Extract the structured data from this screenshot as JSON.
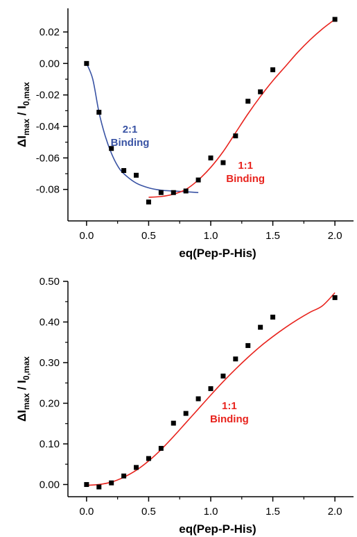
{
  "chart_data": [
    {
      "type": "scatter",
      "xlabel": "eq(Pep-P-His)",
      "ylabel": "ΔImax / I0,max",
      "ylabel_parts": {
        "main": "ΔI",
        "sub1": "max",
        "sep": " / I",
        "sub2": "0,max"
      },
      "xlim": [
        -0.15,
        2.15
      ],
      "ylim": [
        -0.1,
        0.035
      ],
      "xticks": [
        0.0,
        0.5,
        1.0,
        1.5,
        2.0
      ],
      "xtick_labels": [
        "0.0",
        "0.5",
        "1.0",
        "1.5",
        "2.0"
      ],
      "yticks": [
        -0.08,
        -0.06,
        -0.04,
        -0.02,
        0.0,
        0.02
      ],
      "ytick_labels": [
        "-0.08",
        "-0.06",
        "-0.04",
        "-0.02",
        "0.00",
        "0.02"
      ],
      "grid": false,
      "marker_color": "#000000",
      "series": [
        {
          "x": [
            0.0,
            0.1,
            0.2,
            0.3,
            0.4,
            0.5,
            0.6,
            0.7,
            0.8,
            0.9,
            1.0,
            1.1,
            1.2,
            1.3,
            1.4,
            1.5,
            2.0
          ],
          "y": [
            0.0,
            -0.031,
            -0.054,
            -0.068,
            -0.071,
            -0.088,
            -0.082,
            -0.082,
            -0.081,
            -0.074,
            -0.06,
            -0.063,
            -0.046,
            -0.024,
            -0.018,
            -0.004,
            0.028
          ]
        }
      ],
      "fits": [
        {
          "color": "#3953a4",
          "x": [
            0.0,
            0.05,
            0.1,
            0.15,
            0.2,
            0.25,
            0.3,
            0.4,
            0.5,
            0.6,
            0.7,
            0.8,
            0.9
          ],
          "y": [
            0.0,
            -0.01,
            -0.031,
            -0.046,
            -0.057,
            -0.065,
            -0.07,
            -0.076,
            -0.079,
            -0.0805,
            -0.081,
            -0.0815,
            -0.082
          ]
        },
        {
          "color": "#e8231d",
          "x": [
            0.5,
            0.6,
            0.7,
            0.8,
            0.9,
            1.0,
            1.1,
            1.2,
            1.3,
            1.4,
            1.5,
            1.6,
            1.7,
            1.8,
            1.9,
            2.0
          ],
          "y": [
            -0.085,
            -0.0845,
            -0.083,
            -0.08,
            -0.074,
            -0.066,
            -0.056,
            -0.044,
            -0.032,
            -0.021,
            -0.011,
            -0.002,
            0.007,
            0.015,
            0.022,
            0.028
          ]
        }
      ],
      "annotations": [
        {
          "lines": [
            "2:1",
            "Binding"
          ],
          "color": "#3953a4",
          "x": 0.35,
          "y": -0.044
        },
        {
          "lines": [
            "1:1",
            "Binding"
          ],
          "color": "#e8231d",
          "x": 1.28,
          "y": -0.067
        }
      ]
    },
    {
      "type": "scatter",
      "xlabel": "eq(Pep-P-His)",
      "ylabel": "ΔImax / I0,max",
      "ylabel_parts": {
        "main": "ΔI",
        "sub1": "max",
        "sep": " / I",
        "sub2": "0,max"
      },
      "xlim": [
        -0.15,
        2.15
      ],
      "ylim": [
        -0.03,
        0.5
      ],
      "xticks": [
        0.0,
        0.5,
        1.0,
        1.5,
        2.0
      ],
      "xtick_labels": [
        "0.0",
        "0.5",
        "1.0",
        "1.5",
        "2.0"
      ],
      "yticks": [
        0.0,
        0.1,
        0.2,
        0.3,
        0.4,
        0.5
      ],
      "ytick_labels": [
        "0.00",
        "0.10",
        "0.20",
        "0.30",
        "0.40",
        "0.50"
      ],
      "grid": false,
      "marker_color": "#000000",
      "series": [
        {
          "x": [
            0.0,
            0.1,
            0.2,
            0.3,
            0.4,
            0.5,
            0.6,
            0.7,
            0.8,
            0.9,
            1.0,
            1.1,
            1.2,
            1.3,
            1.4,
            1.5,
            2.0
          ],
          "y": [
            0.0,
            -0.006,
            0.004,
            0.021,
            0.042,
            0.064,
            0.089,
            0.151,
            0.175,
            0.211,
            0.236,
            0.267,
            0.309,
            0.342,
            0.387,
            0.412,
            0.46
          ]
        }
      ],
      "fits": [
        {
          "color": "#e8231d",
          "x": [
            0.0,
            0.1,
            0.2,
            0.3,
            0.4,
            0.5,
            0.6,
            0.7,
            0.8,
            0.9,
            1.0,
            1.1,
            1.2,
            1.3,
            1.4,
            1.5,
            1.6,
            1.7,
            1.8,
            1.9,
            2.0
          ],
          "y": [
            -0.002,
            0.0,
            0.006,
            0.018,
            0.035,
            0.058,
            0.086,
            0.118,
            0.152,
            0.186,
            0.22,
            0.253,
            0.284,
            0.313,
            0.34,
            0.364,
            0.386,
            0.406,
            0.424,
            0.44,
            0.472
          ]
        }
      ],
      "annotations": [
        {
          "lines": [
            "1:1",
            "Binding"
          ],
          "color": "#e8231d",
          "x": 1.15,
          "y": 0.185
        }
      ]
    }
  ]
}
